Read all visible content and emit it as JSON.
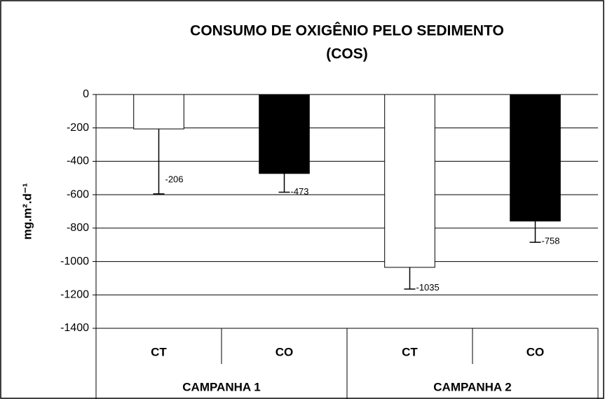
{
  "chart_data": {
    "type": "bar",
    "title": [
      "CONSUMO DE OXIGÊNIO PELO SEDIMENTO",
      "(COS)"
    ],
    "y_label": "mg.m².d⁻¹",
    "categories": [
      "CT",
      "CO",
      "CT",
      "CO"
    ],
    "groups": [
      "CAMPANHA 1",
      "CAMPANHA 2"
    ],
    "values": [
      -206,
      -473,
      -1035,
      -758
    ],
    "errors": [
      389,
      112,
      130,
      127
    ],
    "colors": [
      "#ffffff",
      "#000000",
      "#ffffff",
      "#000000"
    ],
    "ylim": [
      -1400,
      0
    ],
    "yticks": [
      0,
      -200,
      -400,
      -600,
      -800,
      -1000,
      -1200,
      -1400
    ],
    "grid": true
  }
}
